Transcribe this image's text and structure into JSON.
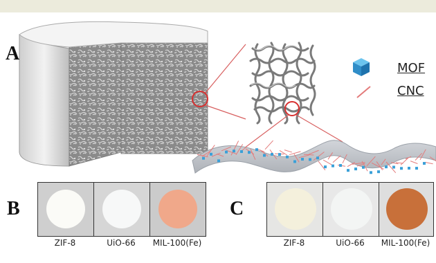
{
  "panels": {
    "a_letter": "A",
    "b_letter": "B",
    "c_letter": "C"
  },
  "legend": {
    "mof_label": "MOF",
    "cnc_label": "CNC",
    "mof_color": "#3aa0d8",
    "cnc_color": "#e37b7b"
  },
  "panel_b": {
    "samples": [
      {
        "label": "ZIF-8",
        "disc_color": "#fbfbf7"
      },
      {
        "label": "UiO-66",
        "disc_color": "#f7f8f8"
      },
      {
        "label": "MIL-100(Fe)",
        "disc_color": "#f0a88a"
      }
    ]
  },
  "panel_c": {
    "samples": [
      {
        "label": "ZIF-8",
        "disc_color": "#f4f0dc"
      },
      {
        "label": "UiO-66",
        "disc_color": "#f3f5f4"
      },
      {
        "label": "MIL-100(Fe)",
        "disc_color": "#c8703a"
      }
    ]
  }
}
